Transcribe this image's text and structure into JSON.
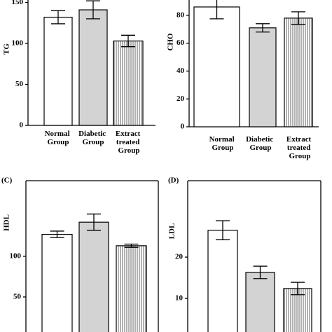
{
  "chart_data": [
    {
      "type": "bar",
      "y_label": "TG",
      "categories": [
        "Normal Group",
        "Diabetic Group",
        "Extract treated Group"
      ],
      "values": [
        132,
        141,
        103
      ],
      "errors": [
        8,
        11,
        7
      ],
      "colors": [
        "#ffffff",
        "#d3d3d3",
        "#ffffff"
      ],
      "hatch": [
        false,
        false,
        true
      ],
      "ylim": [
        0,
        153
      ],
      "yticks": [
        0,
        50,
        100,
        150
      ]
    },
    {
      "type": "bar",
      "y_label": "CHO",
      "categories": [
        "Normal Group",
        "Diabetic Group",
        "Extract treated Group"
      ],
      "values": [
        86,
        71,
        78
      ],
      "errors": [
        8.5,
        3,
        4.5
      ],
      "colors": [
        "#ffffff",
        "#d3d3d3",
        "#ffffff"
      ],
      "hatch": [
        false,
        false,
        true
      ],
      "ylim": [
        0,
        91
      ],
      "yticks": [
        0,
        20,
        40,
        60,
        80
      ]
    },
    {
      "type": "bar",
      "title": "(C)",
      "y_label": "HDL",
      "values": [
        127,
        142,
        113
      ],
      "errors": [
        4,
        10,
        2
      ],
      "colors": [
        "#ffffff",
        "#d3d3d3",
        "#ffffff"
      ],
      "hatch": [
        false,
        false,
        true
      ],
      "ylim": [
        0,
        193
      ],
      "yticks": [
        50,
        100
      ]
    },
    {
      "type": "bar",
      "title": "(D)",
      "y_label": "LDL",
      "values": [
        26.5,
        16.3,
        12.4
      ],
      "errors": [
        2.3,
        1.5,
        1.5
      ],
      "colors": [
        "#ffffff",
        "#d3d3d3",
        "#ffffff"
      ],
      "hatch": [
        false,
        false,
        true
      ],
      "ylim": [
        0,
        38.5
      ],
      "yticks": [
        10,
        20
      ]
    }
  ]
}
